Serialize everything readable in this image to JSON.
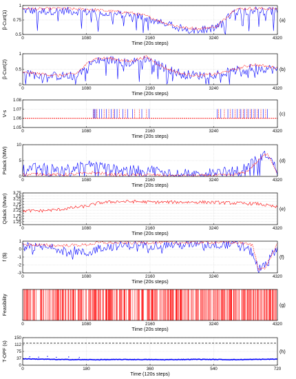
{
  "chart_data": [
    {
      "type": "line",
      "panel": "(a)",
      "ylabel": "β-Curt(1)",
      "xlabel": "Time (20s steps)",
      "xlim": [
        0,
        4320
      ],
      "xticks": [
        0,
        1080,
        2160,
        3240,
        4320
      ],
      "ylim": [
        0.5,
        1
      ],
      "yticks": [
        0.5,
        0.75,
        1
      ],
      "series": [
        {
          "color": "#0000ff",
          "x": [
            0,
            300,
            600,
            900,
            1200,
            1500,
            1800,
            2100,
            2400,
            2700,
            3000,
            3300,
            3600,
            3900,
            4320
          ],
          "y": [
            0.92,
            0.9,
            0.91,
            0.9,
            0.88,
            0.85,
            0.84,
            0.78,
            0.68,
            0.6,
            0.58,
            0.62,
            0.9,
            0.92,
            0.9
          ]
        },
        {
          "color": "#ff0000",
          "x": [
            0,
            300,
            600,
            900,
            1200,
            1500,
            1800,
            2100,
            2400,
            2700,
            3000,
            3300,
            3600,
            3900,
            4320
          ],
          "y": [
            0.95,
            0.94,
            0.95,
            0.94,
            0.93,
            0.9,
            0.88,
            0.82,
            0.7,
            0.62,
            0.6,
            0.64,
            0.94,
            0.95,
            0.94
          ]
        }
      ]
    },
    {
      "type": "line",
      "panel": "(b)",
      "ylabel": "β-Curt(2)",
      "xlabel": "Time (20s steps)",
      "xlim": [
        0,
        4320
      ],
      "xticks": [
        0,
        1080,
        2160,
        3240,
        4320
      ],
      "ylim": [
        0,
        1
      ],
      "yticks": [
        0,
        0.5,
        1
      ],
      "series": [
        {
          "color": "#0000ff",
          "x": [
            0,
            300,
            600,
            900,
            1200,
            1500,
            1800,
            2100,
            2400,
            2700,
            3000,
            3300,
            3600,
            3900,
            4320
          ],
          "y": [
            0.35,
            0.3,
            0.28,
            0.3,
            0.75,
            0.8,
            0.7,
            0.85,
            0.55,
            0.35,
            0.3,
            0.35,
            0.45,
            0.55,
            0.5
          ]
        },
        {
          "color": "#ff0000",
          "x": [
            0,
            300,
            600,
            900,
            1200,
            1500,
            1800,
            2100,
            2400,
            2700,
            3000,
            3300,
            3600,
            3900,
            4320
          ],
          "y": [
            0.4,
            0.35,
            0.3,
            0.35,
            0.85,
            0.85,
            0.75,
            0.9,
            0.55,
            0.35,
            0.3,
            0.35,
            0.5,
            0.65,
            0.55
          ]
        }
      ]
    },
    {
      "type": "line",
      "panel": "(c)",
      "ylabel": "V-s",
      "xlabel": "Time (20s steps)",
      "xlim": [
        0,
        4320
      ],
      "xticks": [
        0,
        1080,
        2160,
        3240,
        4320
      ],
      "ylim": [
        1.05,
        1.08
      ],
      "yticks": [
        1.05,
        1.06,
        1.07,
        1.08
      ],
      "baseline": 1.06,
      "spikes_blue": [
        1200,
        1220,
        1240,
        1300,
        1340,
        1420,
        1500,
        1560,
        1600,
        1700,
        1780,
        1860,
        2020,
        2140,
        3300,
        3360,
        3480,
        3560,
        3640,
        3700,
        3760,
        3820,
        3880,
        3940,
        4000,
        4080,
        4150
      ],
      "spikes_red": [
        1210,
        1260,
        1380,
        1460,
        1540,
        1640,
        1740,
        1900,
        1980,
        2100,
        3320,
        3420,
        3520,
        3600,
        3680,
        3740,
        3800,
        3860,
        3920,
        3980,
        4040,
        4120
      ]
    },
    {
      "type": "line",
      "panel": "(d)",
      "ylabel": "Pslack (MW)",
      "xlabel": "Time (20s steps)",
      "xlim": [
        0,
        4320
      ],
      "xticks": [
        0,
        1080,
        2160,
        3240,
        4320
      ],
      "ylim": [
        0,
        10
      ],
      "yticks": [
        0,
        5,
        10
      ],
      "series": [
        {
          "color": "#0000ff",
          "x": [
            0,
            300,
            600,
            900,
            1200,
            1500,
            1800,
            2100,
            2400,
            2700,
            3000,
            3300,
            3600,
            3800,
            4000,
            4150,
            4320
          ],
          "y": [
            2.5,
            3,
            2.5,
            3,
            4,
            2.5,
            2,
            2.5,
            1.5,
            1,
            1,
            1.5,
            2,
            3,
            6,
            7,
            2
          ]
        },
        {
          "color": "#ff0000",
          "x": [
            0,
            300,
            600,
            900,
            1200,
            1500,
            1800,
            2100,
            2400,
            2700,
            3000,
            3300,
            3600,
            3800,
            4000,
            4150,
            4320
          ],
          "y": [
            0.5,
            0.8,
            0.5,
            0.7,
            1.2,
            0.6,
            0.4,
            0.5,
            0.3,
            0.2,
            0.2,
            0.3,
            0.5,
            1.5,
            5,
            7.5,
            1
          ]
        }
      ]
    },
    {
      "type": "line",
      "panel": "(e)",
      "ylabel": "Qslack (Mvar)",
      "xlabel": "Time (20s steps)",
      "xlim": [
        0,
        4320
      ],
      "xticks": [
        0,
        1080,
        2160,
        3240,
        4320
      ],
      "ylim": [
        1,
        3.75
      ],
      "yticks": [
        1,
        1.25,
        1.5,
        1.75,
        2,
        2.25,
        2.5,
        2.75,
        3,
        3.25,
        3.5,
        3.75
      ],
      "series": [
        {
          "color": "#ff0000",
          "x": [
            0,
            300,
            600,
            900,
            1080,
            1300,
            1600,
            1900,
            2200,
            2500,
            2800,
            3100,
            3400,
            3700,
            4000,
            4320
          ],
          "y": [
            2.2,
            2.2,
            2.3,
            2.5,
            2.6,
            2.9,
            3.0,
            3.0,
            2.95,
            2.95,
            2.95,
            2.95,
            2.9,
            2.85,
            2.8,
            2.5
          ]
        }
      ]
    },
    {
      "type": "line",
      "panel": "(f)",
      "ylabel": "f ($)",
      "xlabel": "Time (20s steps)",
      "xlim": [
        0,
        4320
      ],
      "xticks": [
        0,
        1080,
        2160,
        3240,
        4320
      ],
      "ylim": [
        -3,
        1
      ],
      "yticks": [
        -3,
        -2,
        -1,
        0,
        1
      ],
      "series": [
        {
          "color": "#0000ff",
          "x": [
            0,
            300,
            600,
            900,
            1080,
            1300,
            1600,
            1900,
            2200,
            2500,
            2800,
            3100,
            3400,
            3700,
            3900,
            4000,
            4100,
            4320
          ],
          "y": [
            0.3,
            0.2,
            0.1,
            -0.2,
            -0.6,
            0.2,
            0.4,
            0.5,
            0.5,
            0.55,
            0.5,
            0.55,
            0.6,
            0.5,
            -0.5,
            -2.5,
            -2.2,
            0.3
          ]
        },
        {
          "color": "#ff0000",
          "x": [
            0,
            300,
            600,
            900,
            1080,
            1300,
            1600,
            1900,
            2200,
            2500,
            2800,
            3100,
            3400,
            3700,
            3900,
            4000,
            4100,
            4320
          ],
          "y": [
            0.6,
            0.5,
            0.45,
            0.5,
            0.55,
            0.8,
            0.8,
            0.8,
            0.85,
            0.8,
            0.8,
            0.85,
            0.85,
            0.8,
            0.5,
            -2.5,
            -2.5,
            0.6
          ]
        }
      ]
    },
    {
      "type": "line",
      "panel": "(g)",
      "ylabel": "Feasibility",
      "xlabel": "Time (20s steps)",
      "xlim": [
        0,
        4320
      ],
      "xticks": [
        0,
        1080,
        2160,
        3240,
        4320
      ],
      "ylim": [
        0,
        1
      ],
      "yticks": [],
      "values": [
        0,
        1
      ],
      "color": "#ff0000"
    },
    {
      "type": "scatter",
      "panel": "(h)",
      "ylabel": "T-OPF (s)",
      "xlabel": "Time (120s steps)",
      "xlim": [
        0,
        720
      ],
      "xticks": [
        0,
        180,
        360,
        540,
        720
      ],
      "ylim": [
        0,
        150
      ],
      "yticks": [
        0,
        37,
        75,
        112,
        150
      ],
      "threshold": 120,
      "series": [
        {
          "color": "#0000ff",
          "typical": 30,
          "x": [
            0,
            100,
            200,
            300,
            400,
            500,
            600,
            720
          ],
          "y": [
            35,
            31,
            30,
            31,
            30,
            32,
            30,
            33
          ]
        }
      ],
      "outliers": [
        {
          "x": 20,
          "y": 46
        },
        {
          "x": 45,
          "y": 44
        },
        {
          "x": 70,
          "y": 48
        },
        {
          "x": 95,
          "y": 43
        },
        {
          "x": 130,
          "y": 45
        },
        {
          "x": 160,
          "y": 42
        }
      ]
    }
  ]
}
